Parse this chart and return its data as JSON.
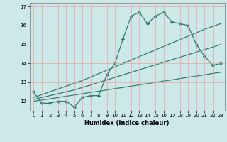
{
  "title": "",
  "xlabel": "Humidex (Indice chaleur)",
  "background_color": "#cce8e8",
  "grid_color": "#e8a0a0",
  "line_color": "#2e7d6e",
  "x_values": [
    0,
    1,
    2,
    3,
    4,
    5,
    6,
    7,
    8,
    9,
    10,
    11,
    12,
    13,
    14,
    15,
    16,
    17,
    18,
    19,
    20,
    21,
    22,
    23
  ],
  "y_main": [
    12.5,
    11.9,
    11.9,
    12.0,
    12.0,
    11.7,
    12.2,
    12.3,
    12.3,
    13.4,
    14.0,
    15.3,
    16.5,
    16.7,
    16.1,
    16.5,
    16.7,
    16.2,
    16.1,
    16.0,
    15.0,
    14.4,
    13.9,
    14.0
  ],
  "y_trend1": [
    12.0,
    12.07,
    12.13,
    12.2,
    12.27,
    12.33,
    12.4,
    12.47,
    12.53,
    12.6,
    12.67,
    12.73,
    12.8,
    12.87,
    12.93,
    13.0,
    13.07,
    13.13,
    13.2,
    13.27,
    13.33,
    13.4,
    13.47,
    13.53
  ],
  "y_trend2": [
    12.1,
    12.2,
    12.3,
    12.4,
    12.5,
    12.6,
    12.73,
    12.86,
    13.0,
    13.13,
    13.26,
    13.4,
    13.53,
    13.66,
    13.8,
    13.93,
    14.06,
    14.2,
    14.33,
    14.46,
    14.6,
    14.73,
    14.86,
    15.0
  ],
  "y_trend3": [
    12.2,
    12.35,
    12.5,
    12.65,
    12.8,
    12.95,
    13.1,
    13.28,
    13.46,
    13.64,
    13.82,
    14.0,
    14.18,
    14.36,
    14.54,
    14.72,
    14.9,
    15.08,
    15.26,
    15.44,
    15.62,
    15.8,
    15.95,
    16.1
  ],
  "ylim": [
    11.5,
    17.2
  ],
  "xlim": [
    -0.5,
    23.5
  ],
  "yticks": [
    12,
    13,
    14,
    15,
    16,
    17
  ],
  "xticks": [
    0,
    1,
    2,
    3,
    4,
    5,
    6,
    7,
    8,
    9,
    10,
    11,
    12,
    13,
    14,
    15,
    16,
    17,
    18,
    19,
    20,
    21,
    22,
    23
  ],
  "marker": "D",
  "markersize": 2.2,
  "linewidth": 0.9
}
